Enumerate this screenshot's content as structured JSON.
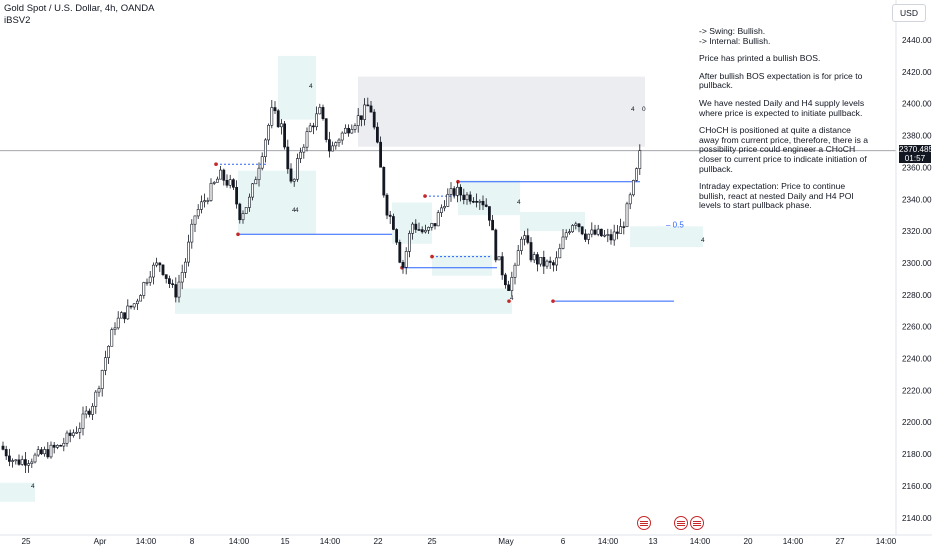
{
  "header": {
    "symbol_line": "Gold Spot / U.S. Dollar, 4h, OANDA",
    "indicator": "iBSV2"
  },
  "currency_button": "USD",
  "price_tag": {
    "price": "2370.485",
    "countdown": "01:57"
  },
  "annotation": {
    "lines": [
      "-> Swing:  Bullish.",
      "-> Internal:  Bullish."
    ],
    "p1": "Price has printed a bullish BOS.",
    "p2": "After bullish BOS expectation is for price to pullback.",
    "p3": "We have nested Daily and H4 supply levels where price is expected to initiate pullback.",
    "p4": "CHoCH is positioned at quite a distance away from current price, therefore, there is a possibility price could engineer a CHoCH closer to current price to indicate initiation of pullback.",
    "p5": "Intraday expectation: Price to continue bullish, react at nested Daily and H4 POI levels to start pullback phase."
  },
  "fib_label": "0.5",
  "zone_labels": [
    "4",
    "4",
    "4",
    "4",
    "4",
    "0",
    "4",
    "4",
    "4"
  ],
  "colors": {
    "bull": "#ffffff",
    "bear": "#131722",
    "zone_blue": "#e0f2f1",
    "zone_grey": "#e6e7ec",
    "structure_line": "#2962ff",
    "marker": "#c62828"
  },
  "chart_data": {
    "type": "candlestick",
    "title": "Gold Spot / U.S. Dollar, 4h, OANDA",
    "ylim": [
      2130,
      2450
    ],
    "y_ticks": [
      2140,
      2160,
      2180,
      2200,
      2220,
      2240,
      2260,
      2280,
      2300,
      2320,
      2340,
      2360,
      2380,
      2400,
      2420,
      2440
    ],
    "x_ticks": [
      "25",
      "Apr",
      "14:00",
      "8",
      "14:00",
      "15",
      "14:00",
      "22",
      "25",
      "May",
      "6",
      "14:00",
      "13",
      "14:00",
      "20",
      "14:00",
      "27",
      "14:00"
    ],
    "last_price": 2370.485,
    "price_path": [
      [
        0,
        2185
      ],
      [
        15,
        2175
      ],
      [
        35,
        2178
      ],
      [
        60,
        2185
      ],
      [
        80,
        2198
      ],
      [
        95,
        2215
      ],
      [
        105,
        2240
      ],
      [
        115,
        2262
      ],
      [
        135,
        2275
      ],
      [
        150,
        2295
      ],
      [
        160,
        2300
      ],
      [
        175,
        2280
      ],
      [
        185,
        2300
      ],
      [
        195,
        2330
      ],
      [
        210,
        2345
      ],
      [
        220,
        2355
      ],
      [
        232,
        2348
      ],
      [
        240,
        2330
      ],
      [
        250,
        2340
      ],
      [
        262,
        2370
      ],
      [
        272,
        2395
      ],
      [
        282,
        2385
      ],
      [
        292,
        2345
      ],
      [
        300,
        2370
      ],
      [
        310,
        2385
      ],
      [
        320,
        2395
      ],
      [
        330,
        2370
      ],
      [
        338,
        2378
      ],
      [
        352,
        2388
      ],
      [
        362,
        2393
      ],
      [
        370,
        2400
      ],
      [
        378,
        2370
      ],
      [
        386,
        2335
      ],
      [
        395,
        2322
      ],
      [
        402,
        2295
      ],
      [
        412,
        2325
      ],
      [
        425,
        2318
      ],
      [
        435,
        2325
      ],
      [
        445,
        2340
      ],
      [
        455,
        2345
      ],
      [
        465,
        2342
      ],
      [
        478,
        2342
      ],
      [
        488,
        2335
      ],
      [
        496,
        2305
      ],
      [
        508,
        2285
      ],
      [
        515,
        2295
      ],
      [
        522,
        2320
      ],
      [
        530,
        2305
      ],
      [
        540,
        2300
      ],
      [
        555,
        2298
      ],
      [
        565,
        2318
      ],
      [
        575,
        2328
      ],
      [
        585,
        2318
      ],
      [
        598,
        2318
      ],
      [
        610,
        2315
      ],
      [
        622,
        2322
      ],
      [
        630,
        2340
      ],
      [
        636,
        2355
      ],
      [
        641,
        2370.485
      ]
    ],
    "levels": [
      {
        "type": "bos",
        "price": 2351
      },
      {
        "type": "choch",
        "price": 2318
      },
      {
        "type": "low",
        "price": 2276
      },
      {
        "type": "fib_0.5",
        "price": 2324
      }
    ],
    "zones": [
      {
        "kind": "demand",
        "top": 2284,
        "bottom": 2268
      },
      {
        "kind": "supply",
        "top": 2417,
        "bottom": 2373
      },
      {
        "kind": "demand",
        "top": 2323,
        "bottom": 2310
      }
    ]
  }
}
